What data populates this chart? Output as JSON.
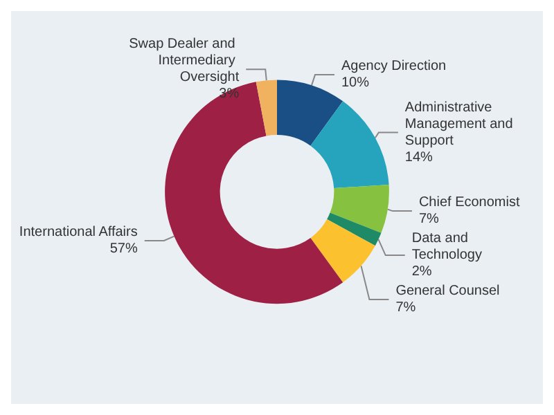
{
  "chart_data": {
    "type": "donut",
    "categories": [
      "Agency Direction",
      "Administrative Management and Support",
      "Chief Economist",
      "Data and Technology",
      "General Counsel",
      "International Affairs",
      "Swap Dealer and Intermediary Oversight"
    ],
    "values": [
      10,
      14,
      7,
      2,
      7,
      57,
      3
    ],
    "colors": [
      "#1a4f86",
      "#26a3bd",
      "#86c140",
      "#1f8a66",
      "#fcc12e",
      "#9e2045",
      "#f0b25e"
    ],
    "value_labels": [
      "10%",
      "14%",
      "7%",
      "2%",
      "7%",
      "57%",
      "3%"
    ],
    "legend": false
  }
}
